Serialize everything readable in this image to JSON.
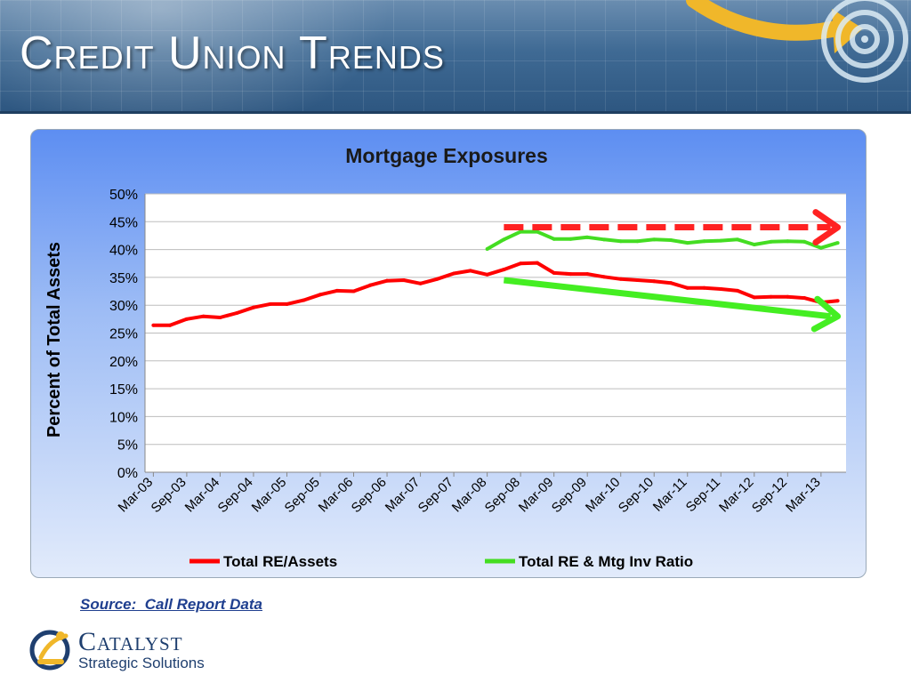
{
  "slide": {
    "title": "Credit Union Trends",
    "source": "Source:  Call Report Data",
    "logo_name": "Catalyst",
    "logo_tagline": "Strategic Solutions",
    "colors": {
      "banner": "#3f6a94",
      "title": "#ffffff",
      "source": "#1f3f8f",
      "logo": "#1f3f6f",
      "accent": "#f0b72a"
    },
    "icons": [
      "target-icon",
      "curved-arrow-icon",
      "catalyst-logo-icon"
    ]
  },
  "chart_data": {
    "type": "line",
    "title": "Mortgage Exposures",
    "xlabel": "",
    "ylabel": "Percent of Total Assets",
    "ylim": [
      0,
      50
    ],
    "y_ticks": [
      "0%",
      "5%",
      "10%",
      "15%",
      "20%",
      "25%",
      "30%",
      "35%",
      "40%",
      "45%",
      "50%"
    ],
    "x_tick_labels": [
      "Mar-03",
      "Sep-03",
      "Mar-04",
      "Sep-04",
      "Mar-05",
      "Sep-05",
      "Mar-06",
      "Sep-06",
      "Mar-07",
      "Sep-07",
      "Mar-08",
      "Sep-08",
      "Mar-09",
      "Sep-09",
      "Mar-10",
      "Sep-10",
      "Mar-11",
      "Sep-11",
      "Mar-12",
      "Sep-12",
      "Mar-13"
    ],
    "grid": true,
    "legend": "bottom",
    "series": [
      {
        "name": "Total RE/Assets",
        "color": "#ff0000",
        "x": [
          "Mar-03",
          "Jun-03",
          "Sep-03",
          "Dec-03",
          "Mar-04",
          "Jun-04",
          "Sep-04",
          "Dec-04",
          "Mar-05",
          "Jun-05",
          "Sep-05",
          "Dec-05",
          "Mar-06",
          "Jun-06",
          "Sep-06",
          "Dec-06",
          "Mar-07",
          "Jun-07",
          "Sep-07",
          "Dec-07",
          "Mar-08",
          "Jun-08",
          "Sep-08",
          "Dec-08",
          "Mar-09",
          "Jun-09",
          "Sep-09",
          "Dec-09",
          "Mar-10",
          "Jun-10",
          "Sep-10",
          "Dec-10",
          "Mar-11",
          "Jun-11",
          "Sep-11",
          "Dec-11",
          "Mar-12",
          "Jun-12",
          "Sep-12",
          "Dec-12",
          "Mar-13",
          "Jun-13"
        ],
        "values": [
          26.4,
          26.4,
          27.5,
          28.0,
          27.8,
          28.6,
          29.6,
          30.2,
          30.2,
          30.9,
          31.9,
          32.6,
          32.5,
          33.6,
          34.4,
          34.5,
          33.9,
          34.7,
          35.7,
          36.2,
          35.5,
          36.4,
          37.5,
          37.6,
          35.8,
          35.6,
          35.6,
          35.1,
          34.7,
          34.5,
          34.3,
          34.0,
          33.1,
          33.1,
          32.9,
          32.6,
          31.4,
          31.5,
          31.5,
          31.3,
          30.5,
          30.8
        ]
      },
      {
        "name": "Total RE & Mtg Inv Ratio",
        "color": "#44dd22",
        "x": [
          "Mar-08",
          "Jun-08",
          "Sep-08",
          "Dec-08",
          "Mar-09",
          "Jun-09",
          "Sep-09",
          "Dec-09",
          "Mar-10",
          "Jun-10",
          "Sep-10",
          "Dec-10",
          "Mar-11",
          "Jun-11",
          "Sep-11",
          "Dec-11",
          "Mar-12",
          "Jun-12",
          "Sep-12",
          "Dec-12",
          "Mar-13",
          "Jun-13"
        ],
        "values": [
          40.1,
          41.8,
          43.2,
          43.2,
          41.9,
          41.9,
          42.2,
          41.8,
          41.5,
          41.5,
          41.8,
          41.7,
          41.2,
          41.5,
          41.6,
          41.8,
          40.9,
          41.4,
          41.5,
          41.4,
          40.3,
          41.2
        ]
      }
    ],
    "annotations": [
      {
        "name": "flat-trend-arrow",
        "style": "dashed",
        "color": "#ff2222",
        "from": [
          "Jun-08",
          44
        ],
        "to": [
          "Jun-13",
          44
        ]
      },
      {
        "name": "declining-trend-arrow",
        "style": "solid",
        "color": "#44ee22",
        "from": [
          "Jun-08",
          34.5
        ],
        "to": [
          "Jun-13",
          28
        ]
      }
    ]
  }
}
